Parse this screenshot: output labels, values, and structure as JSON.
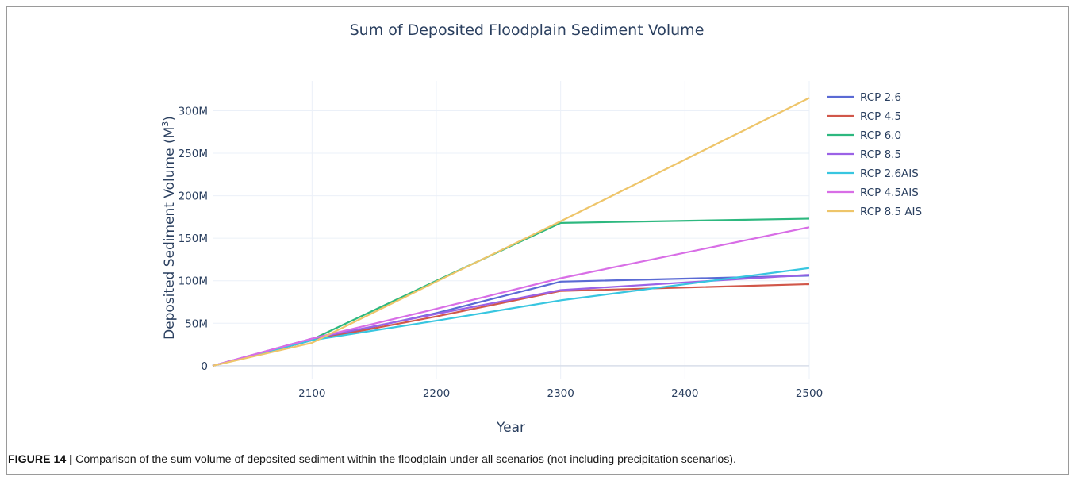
{
  "chart_data": {
    "type": "line",
    "title": "Sum of Deposited Floodplain Sediment Volume",
    "xlabel": "Year",
    "ylabel_main": "Deposited Sediment Volume (M",
    "ylabel_sup": "3",
    "ylabel_close": ")",
    "xlim": [
      2020,
      2500
    ],
    "ylim": [
      -16000000,
      335000000
    ],
    "x_ticks": [
      2100,
      2200,
      2300,
      2400,
      2500
    ],
    "x_tick_labels": [
      "2100",
      "2200",
      "2300",
      "2400",
      "2500"
    ],
    "y_ticks": [
      0,
      50000000,
      100000000,
      150000000,
      200000000,
      250000000,
      300000000
    ],
    "y_tick_labels": [
      "0",
      "50M",
      "100M",
      "150M",
      "200M",
      "250M",
      "300M"
    ],
    "grid": true,
    "legend_position": "top-right",
    "series": [
      {
        "name": "RCP 2.6",
        "color": "#5a6ad4",
        "x": [
          2020,
          2100,
          2200,
          2300,
          2500
        ],
        "values": [
          0,
          30000000,
          62000000,
          99000000,
          106000000
        ]
      },
      {
        "name": "RCP 4.5",
        "color": "#d1574a",
        "x": [
          2020,
          2100,
          2200,
          2300,
          2500
        ],
        "values": [
          0,
          30000000,
          58000000,
          88000000,
          96000000
        ]
      },
      {
        "name": "RCP 6.0",
        "color": "#2db87f",
        "x": [
          2020,
          2100,
          2200,
          2300,
          2500
        ],
        "values": [
          0,
          31000000,
          100000000,
          168000000,
          173000000
        ]
      },
      {
        "name": "RCP 8.5",
        "color": "#9b62e6",
        "x": [
          2020,
          2100,
          2200,
          2300,
          2500
        ],
        "values": [
          0,
          32000000,
          61000000,
          89000000,
          107000000
        ]
      },
      {
        "name": "RCP 2.6AIS",
        "color": "#38c6e0",
        "x": [
          2020,
          2100,
          2200,
          2300,
          2500
        ],
        "values": [
          0,
          30000000,
          53000000,
          77000000,
          115000000
        ]
      },
      {
        "name": "RCP 4.5AIS",
        "color": "#d86ee6",
        "x": [
          2020,
          2100,
          2200,
          2300,
          2500
        ],
        "values": [
          0,
          32000000,
          67000000,
          103000000,
          163000000
        ]
      },
      {
        "name": "RCP 8.5 AIS",
        "color": "#eec56a",
        "x": [
          2020,
          2100,
          2200,
          2300,
          2500
        ],
        "values": [
          0,
          27000000,
          99000000,
          170000000,
          315000000
        ]
      }
    ]
  },
  "caption": {
    "label": "FIGURE 14 |",
    "text": " Comparison of the sum volume of deposited sediment within the floodplain under all scenarios (not including precipitation scenarios)."
  }
}
